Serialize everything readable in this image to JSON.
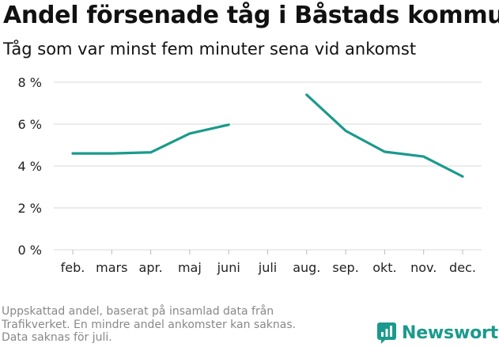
{
  "chart_data": {
    "type": "line",
    "title": "Andel försenade tåg i Båstads kommun",
    "subtitle": "Tåg som var minst fem minuter sena vid ankomst",
    "categories": [
      "feb.",
      "mars",
      "apr.",
      "maj",
      "juni",
      "juli",
      "aug.",
      "sep.",
      "okt.",
      "nov.",
      "dec."
    ],
    "series": [
      {
        "values": [
          4.6,
          4.6,
          4.65,
          5.55,
          5.97,
          null,
          7.4,
          5.68,
          4.68,
          4.45,
          3.5
        ]
      }
    ],
    "yticks": [
      "0 %",
      "2 %",
      "4 %",
      "6 %",
      "8 %"
    ],
    "ylim": [
      0,
      8
    ],
    "grid": true,
    "line_color": "#1a9a8c"
  },
  "footnote": [
    "Uppskattad andel, baserat på insamlad data från",
    "Trafikverket. En mindre andel ankomster kan saknas.",
    "Data saknas för juli."
  ],
  "brand": {
    "name": "Newsworthy",
    "icon": "newsworthy-logo-icon",
    "color": "#1a9a8c"
  }
}
